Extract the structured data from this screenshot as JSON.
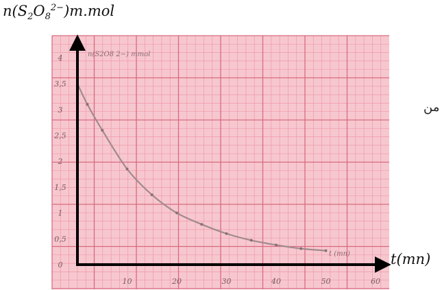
{
  "chart_data": {
    "type": "line",
    "ylabel_parts": {
      "pre": "n(S",
      "sub1": "2",
      "mid": "O",
      "sub2": "8",
      "sup": "2−",
      "post": ")m.mol"
    },
    "xlabel": "t(mn)",
    "handwritten_ylabel": "n(S2O8 2−) mmol",
    "handwritten_xlabel": "t (mn)",
    "y_ticks": [
      "0",
      "0,5",
      "1",
      "1,5",
      "2",
      "2,5",
      "3",
      "3,5",
      "4"
    ],
    "x_ticks": [
      "10",
      "20",
      "30",
      "40",
      "50",
      "60"
    ],
    "xlim": [
      0,
      60
    ],
    "ylim": [
      0,
      4
    ],
    "series": [
      {
        "x": [
          0,
          2,
          5,
          10,
          15,
          20,
          25,
          30,
          35,
          40,
          45,
          50
        ],
        "y": [
          3.5,
          3.1,
          2.6,
          1.85,
          1.35,
          1.0,
          0.78,
          0.6,
          0.47,
          0.38,
          0.31,
          0.27
        ]
      }
    ],
    "grid": true,
    "paper_color": "#f7c7cf"
  },
  "side_note": "من"
}
